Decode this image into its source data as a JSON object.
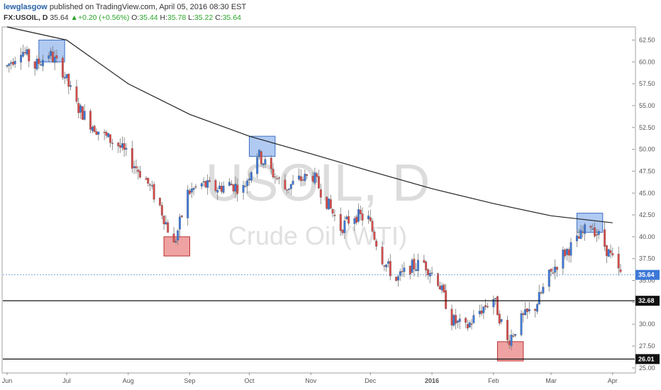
{
  "header": {
    "user": "lewglasgow",
    "published": "published on TradingView.com, April 05, 2016 08:30 EST",
    "symbol": "FX:USOIL, D",
    "last": "35.64",
    "change": "▲+0.20 (+0.56%)",
    "open_label": "O:",
    "open": "35.44",
    "high_label": "H:",
    "high": "35.78",
    "low_label": "L:",
    "low": "35.22",
    "close_label": "C:",
    "close": "35.64"
  },
  "watermark": {
    "symbol": "USOIL, D",
    "name": "Crude Oil (WTI)"
  },
  "colors": {
    "up": "#3c78d8",
    "down": "#d94b4b",
    "ma": "#222222",
    "blue_box": "#6f9ee8",
    "red_box": "#e15555"
  },
  "chart_data": {
    "type": "candlestick",
    "ylim": [
      24.5,
      64
    ],
    "y_ticks": [
      25.0,
      27.5,
      30.0,
      32.5,
      35.0,
      37.5,
      40.0,
      42.5,
      45.0,
      47.5,
      50.0,
      52.5,
      55.0,
      57.5,
      60.0,
      62.5
    ],
    "x_labels": [
      "Jun",
      "Jul",
      "Aug",
      "Sep",
      "Oct",
      "Nov",
      "Dec",
      "2016",
      "Feb",
      "Mar",
      "Apr"
    ],
    "price_path": [
      [
        "2015-06-01",
        59.5
      ],
      [
        "2015-06-08",
        61.5
      ],
      [
        "2015-06-15",
        59.5
      ],
      [
        "2015-06-22",
        61.0
      ],
      [
        "2015-06-29",
        59.0
      ],
      [
        "2015-07-06",
        55.0
      ],
      [
        "2015-07-13",
        53.0
      ],
      [
        "2015-07-20",
        51.5
      ],
      [
        "2015-07-27",
        50.5
      ],
      [
        "2015-08-03",
        48.5
      ],
      [
        "2015-08-10",
        46.5
      ],
      [
        "2015-08-17",
        43.5
      ],
      [
        "2015-08-24",
        39.0
      ],
      [
        "2015-08-31",
        45.0
      ],
      [
        "2015-09-07",
        46.0
      ],
      [
        "2015-09-14",
        45.5
      ],
      [
        "2015-09-21",
        46.0
      ],
      [
        "2015-09-28",
        45.5
      ],
      [
        "2015-10-05",
        49.5
      ],
      [
        "2015-10-12",
        47.5
      ],
      [
        "2015-10-19",
        45.5
      ],
      [
        "2015-10-26",
        46.5
      ],
      [
        "2015-11-02",
        47.0
      ],
      [
        "2015-11-09",
        44.0
      ],
      [
        "2015-11-16",
        41.0
      ],
      [
        "2015-11-23",
        42.5
      ],
      [
        "2015-11-30",
        42.0
      ],
      [
        "2015-12-07",
        37.5
      ],
      [
        "2015-12-14",
        35.0
      ],
      [
        "2015-12-21",
        36.5
      ],
      [
        "2015-12-28",
        37.0
      ],
      [
        "2016-01-04",
        35.0
      ],
      [
        "2016-01-11",
        30.5
      ],
      [
        "2016-01-18",
        29.5
      ],
      [
        "2016-01-25",
        31.5
      ],
      [
        "2016-02-01",
        33.0
      ],
      [
        "2016-02-08",
        28.0
      ],
      [
        "2016-02-15",
        30.5
      ],
      [
        "2016-02-22",
        32.0
      ],
      [
        "2016-02-29",
        35.5
      ],
      [
        "2016-03-07",
        38.0
      ],
      [
        "2016-03-14",
        39.5
      ],
      [
        "2016-03-21",
        41.5
      ],
      [
        "2016-03-28",
        39.0
      ],
      [
        "2016-04-05",
        35.6
      ]
    ],
    "ma_path": [
      [
        "2015-06-01",
        64.0
      ],
      [
        "2015-07-01",
        62.5
      ],
      [
        "2015-08-01",
        57.5
      ],
      [
        "2015-09-01",
        54.0
      ],
      [
        "2015-10-01",
        51.5
      ],
      [
        "2015-11-01",
        49.5
      ],
      [
        "2015-12-01",
        47.5
      ],
      [
        "2016-01-01",
        45.5
      ],
      [
        "2016-02-01",
        43.8
      ],
      [
        "2016-03-01",
        42.4
      ],
      [
        "2016-04-01",
        41.6
      ]
    ],
    "last_price": "35.64",
    "horizontal_levels": [
      {
        "value": 32.68,
        "label": "32.68"
      },
      {
        "value": 26.01,
        "label": "26.01"
      }
    ],
    "boxes": [
      {
        "color": "blue",
        "from": "2015-06-17",
        "to": "2015-06-30",
        "low": 60.0,
        "high": 62.5
      },
      {
        "color": "red",
        "from": "2015-08-19",
        "to": "2015-09-01",
        "low": 37.8,
        "high": 40.0
      },
      {
        "color": "blue",
        "from": "2015-10-01",
        "to": "2015-10-14",
        "low": 49.2,
        "high": 51.5
      },
      {
        "color": "red",
        "from": "2016-02-03",
        "to": "2016-02-16",
        "low": 25.8,
        "high": 28.0
      },
      {
        "color": "blue",
        "from": "2016-03-14",
        "to": "2016-03-27",
        "low": 40.5,
        "high": 42.7
      }
    ]
  }
}
